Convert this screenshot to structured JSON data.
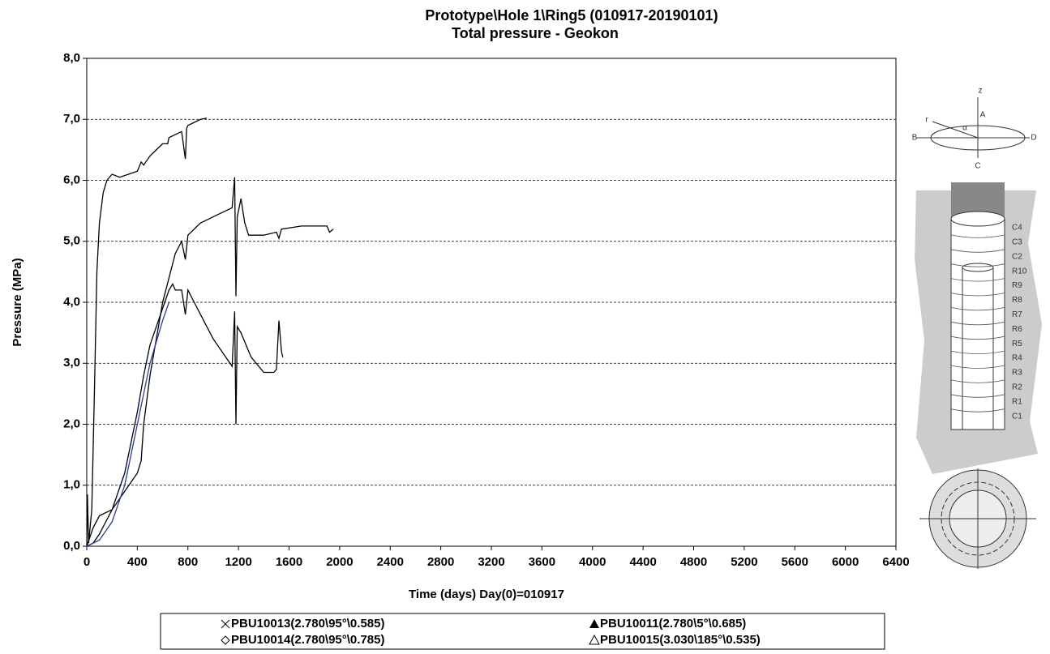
{
  "chart_data": {
    "type": "line",
    "title": "Prototype\\Hole 1\\Ring5   (010917-20190101)",
    "subtitle": "Total pressure  - Geokon",
    "x_label": "Time  (days)  Day(0)=010917",
    "y_label": "Pressure (MPa)",
    "xlim": [
      0,
      6400
    ],
    "xticks": [
      0,
      400,
      800,
      1200,
      1600,
      2000,
      2400,
      2800,
      3200,
      3600,
      4000,
      4400,
      4800,
      5200,
      5600,
      6000,
      6400
    ],
    "ylim": [
      0,
      8
    ],
    "yticks": [
      {
        "value": 0,
        "label": "0,0"
      },
      {
        "value": 1,
        "label": "1,0"
      },
      {
        "value": 2,
        "label": "2,0"
      },
      {
        "value": 3,
        "label": "3,0"
      },
      {
        "value": 4,
        "label": "4,0"
      },
      {
        "value": 5,
        "label": "5,0"
      },
      {
        "value": 6,
        "label": "6,0"
      },
      {
        "value": 7,
        "label": "7,0"
      },
      {
        "value": 8,
        "label": "8,0"
      }
    ],
    "grid": true,
    "series": [
      {
        "name": "PBU10013(2.780\\95°\\0.585)",
        "color": "#000000",
        "x": [
          0,
          5,
          15,
          40,
          60,
          80,
          100,
          130,
          160,
          200,
          260,
          330,
          400,
          430,
          450,
          500,
          550,
          600,
          640,
          650,
          700,
          750,
          780,
          790,
          800,
          850,
          900,
          950
        ],
        "values": [
          0,
          0.85,
          0.05,
          0.6,
          2.5,
          4.5,
          5.3,
          5.8,
          6.0,
          6.1,
          6.05,
          6.1,
          6.15,
          6.3,
          6.25,
          6.4,
          6.5,
          6.6,
          6.6,
          6.7,
          6.75,
          6.8,
          6.35,
          6.85,
          6.9,
          6.95,
          7.0,
          7.02
        ]
      },
      {
        "name": "PBU10011(2.780\\5°\\0.685)",
        "color": "#000000",
        "x": [
          0,
          50,
          100,
          200,
          300,
          400,
          430,
          450,
          500,
          550,
          600,
          650,
          700,
          750,
          780,
          800,
          900,
          1000,
          1100,
          1150,
          1170,
          1180,
          1190,
          1220,
          1250,
          1280,
          1300,
          1400,
          1500,
          1520,
          1540,
          1700,
          1900,
          1920,
          1950
        ],
        "values": [
          0,
          0.05,
          0.2,
          0.6,
          0.9,
          1.2,
          1.4,
          2.0,
          2.8,
          3.4,
          4.0,
          4.4,
          4.8,
          5.0,
          4.7,
          5.1,
          5.3,
          5.4,
          5.5,
          5.55,
          6.05,
          4.1,
          5.4,
          5.7,
          5.3,
          5.1,
          5.1,
          5.1,
          5.15,
          5.05,
          5.2,
          5.25,
          5.25,
          5.15,
          5.2
        ]
      },
      {
        "name": "PBU10014(2.780\\95°\\0.785)",
        "color": "#000000",
        "x": [
          0,
          50,
          100,
          150,
          200,
          300,
          400,
          450,
          500,
          600,
          650,
          680,
          700,
          750,
          780,
          800,
          850,
          900,
          1000,
          1100,
          1150,
          1170,
          1180,
          1190,
          1220,
          1300,
          1400,
          1480,
          1500,
          1520,
          1540,
          1550
        ],
        "values": [
          0,
          0.3,
          0.5,
          0.55,
          0.6,
          1.2,
          2.2,
          2.8,
          3.3,
          3.9,
          4.2,
          4.3,
          4.2,
          4.2,
          3.8,
          4.2,
          4.0,
          3.8,
          3.4,
          3.1,
          2.95,
          3.85,
          2.0,
          3.6,
          3.5,
          3.1,
          2.85,
          2.85,
          2.9,
          3.7,
          3.2,
          3.1
        ]
      },
      {
        "name": "PBU10015(3.030\\185°\\0.535)",
        "color": "#2b3b9a",
        "x": [
          0,
          100,
          200,
          300,
          400,
          500,
          600,
          650
        ],
        "values": [
          0,
          0.1,
          0.4,
          1.0,
          2.0,
          3.0,
          3.7,
          4.0
        ]
      }
    ]
  },
  "diagram": {
    "axis_labels": [
      "z",
      "A",
      "r",
      "α",
      "B",
      "D",
      "C"
    ],
    "ring_labels": [
      "C4",
      "C3",
      "C2",
      "R10",
      "R9",
      "R8",
      "R7",
      "R6",
      "R5",
      "R4",
      "R3",
      "R2",
      "R1",
      "C1"
    ]
  }
}
